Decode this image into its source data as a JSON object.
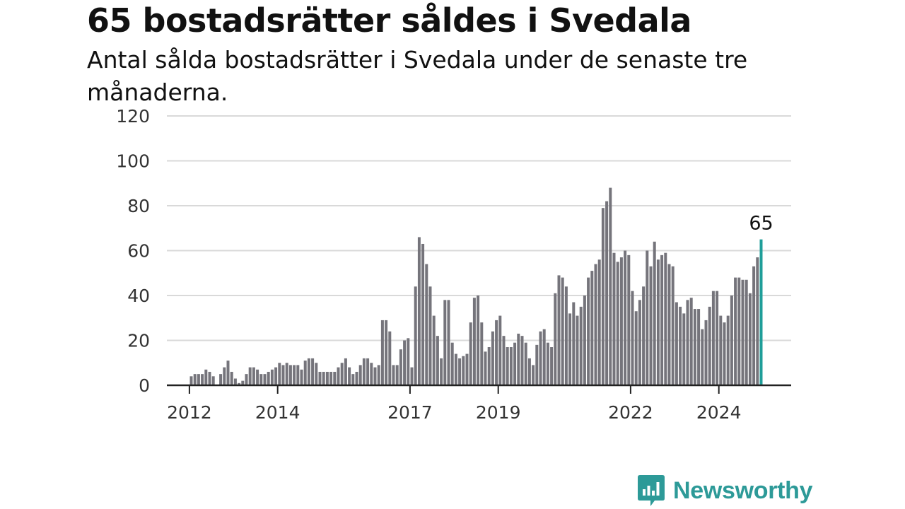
{
  "header": {
    "title": "65 bostadsrätter såldes i Svedala",
    "subtitle": "Antal sålda bostadsrätter i Svedala under de senaste tre månaderna."
  },
  "brand": {
    "name": "Newsworthy",
    "color": "#2d9a98",
    "icon": "newsworthy-logo-icon"
  },
  "colors": {
    "bar": "#75747b",
    "highlight": "#1f9e99",
    "grid": "#d9d9d9",
    "axis": "#222222"
  },
  "chart_data": {
    "type": "bar",
    "title": "65 bostadsrätter såldes i Svedala",
    "subtitle": "Antal sålda bostadsrätter i Svedala under de senaste tre månaderna.",
    "xlabel": "",
    "ylabel": "",
    "ylim": [
      0,
      120
    ],
    "yticks": [
      0,
      20,
      40,
      60,
      80,
      100,
      120
    ],
    "xticks": [
      "2012",
      "2014",
      "2017",
      "2019",
      "2022",
      "2024"
    ],
    "grid": true,
    "highlight_label": "65",
    "series": [
      {
        "values": [
          4,
          5,
          5,
          5,
          7,
          6,
          4,
          0,
          5,
          8,
          11,
          6,
          3,
          1,
          2,
          5,
          8,
          8,
          7,
          5,
          5,
          6,
          7,
          8,
          10,
          9,
          10,
          9,
          9,
          9,
          7,
          11,
          12,
          12,
          10,
          6,
          6,
          6,
          6,
          6,
          8,
          10,
          12,
          8,
          5,
          6,
          9,
          12,
          12,
          10,
          8,
          9,
          29,
          29,
          24,
          9,
          9,
          16,
          20,
          21,
          8,
          44,
          66,
          63,
          54,
          44,
          31,
          22,
          12,
          38,
          38,
          19,
          14,
          12,
          13,
          14,
          28,
          39,
          40,
          28,
          15,
          17,
          24,
          29,
          31,
          22,
          17,
          17,
          19,
          23,
          22,
          19,
          12,
          9,
          18,
          24,
          25,
          19,
          17,
          41,
          49,
          48,
          44,
          32,
          37,
          31,
          35,
          40,
          48,
          51,
          54,
          56,
          79,
          82,
          88,
          59,
          55,
          57,
          60,
          58,
          42,
          33,
          38,
          44,
          60,
          53,
          64,
          56,
          58,
          59,
          54,
          53,
          37,
          35,
          32,
          38,
          39,
          34,
          34,
          25,
          29,
          35,
          42,
          42,
          31,
          28,
          31,
          40,
          48,
          48,
          47,
          47,
          41,
          53,
          57,
          65
        ]
      }
    ]
  }
}
